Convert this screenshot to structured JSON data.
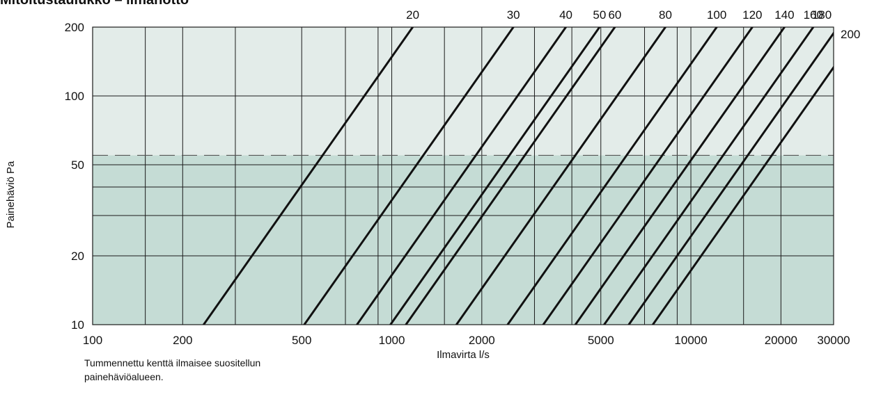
{
  "chart_data": {
    "type": "line",
    "title": "Mitoitustaulukko – ilmanotto",
    "xlabel": "Ilmavirta l/s",
    "ylabel": "Painehäviö Pa",
    "x_scale": "log",
    "y_scale": "log",
    "xlim": [
      100,
      30000
    ],
    "ylim": [
      10,
      200
    ],
    "grid": true,
    "x_tick_values": [
      100,
      200,
      500,
      1000,
      2000,
      5000,
      10000,
      20000,
      30000
    ],
    "x_tick_labels": [
      "100",
      "200",
      "500",
      "1000",
      "2000",
      "5000",
      "10000",
      "20000",
      "30000"
    ],
    "x_gridlines": [
      150,
      200,
      300,
      500,
      700,
      900,
      1000,
      1500,
      2000,
      3000,
      4000,
      5000,
      7000,
      9000,
      10000,
      15000,
      20000
    ],
    "y_tick_values": [
      10,
      20,
      50,
      100,
      200
    ],
    "y_tick_labels": [
      "10",
      "20",
      "50",
      "100",
      "200"
    ],
    "y_gridlines": [
      10,
      20,
      30,
      40,
      50,
      100,
      200
    ],
    "right_axis_label": "200",
    "recommended_max_pressure": 55,
    "background_colors": {
      "light": "#e3ece9",
      "dark": "#c5dcd5",
      "grid": "#1a1a1a",
      "series": "#111111"
    },
    "series": [
      {
        "name": "20",
        "x": [
          235,
          1175
        ],
        "y": [
          10,
          200
        ]
      },
      {
        "name": "30",
        "x": [
          510,
          2550
        ],
        "y": [
          10,
          200
        ]
      },
      {
        "name": "40",
        "x": [
          765,
          3820
        ],
        "y": [
          10,
          200
        ]
      },
      {
        "name": "50",
        "x": [
          990,
          4950
        ],
        "y": [
          10,
          200
        ]
      },
      {
        "name": "60",
        "x": [
          1115,
          5570
        ],
        "y": [
          10,
          200
        ]
      },
      {
        "name": "80",
        "x": [
          1645,
          8220
        ],
        "y": [
          10,
          200
        ]
      },
      {
        "name": "100",
        "x": [
          2440,
          12200
        ],
        "y": [
          10,
          200
        ]
      },
      {
        "name": "120",
        "x": [
          3210,
          16050
        ],
        "y": [
          10,
          200
        ]
      },
      {
        "name": "140",
        "x": [
          4110,
          20550
        ],
        "y": [
          10,
          200
        ]
      },
      {
        "name": "160",
        "x": [
          5130,
          25650
        ],
        "y": [
          10,
          200
        ]
      },
      {
        "name": "180",
        "x": [
          6200,
          31000
        ],
        "y": [
          10,
          200
        ]
      },
      {
        "name": "",
        "x": [
          7460,
          37300
        ],
        "y": [
          10,
          200
        ]
      }
    ],
    "series_labels": [
      {
        "text": "20",
        "x": 1175
      },
      {
        "text": "30",
        "x": 2550
      },
      {
        "text": "40",
        "x": 3820
      },
      {
        "text": "50",
        "x": 4950
      },
      {
        "text": "60",
        "x": 5570
      },
      {
        "text": "80",
        "x": 8220
      },
      {
        "text": "100",
        "x": 12200
      },
      {
        "text": "120",
        "x": 16050
      },
      {
        "text": "140",
        "x": 20550
      },
      {
        "text": "160",
        "x": 25650
      },
      {
        "text": "180",
        "x": 31000
      }
    ]
  },
  "note": "Tummennettu kenttä ilmaisee suositellun painehäviöalueen."
}
